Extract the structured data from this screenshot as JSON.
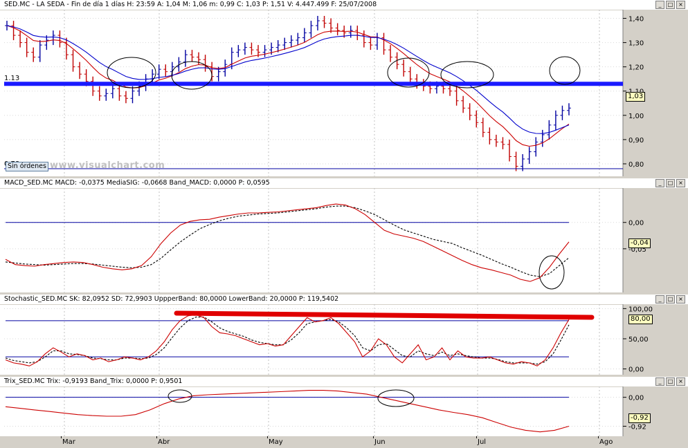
{
  "chart_data": [
    {
      "type": "candlestick",
      "title": "SED.MC - LA SEDA - Fin de día 1 días H: 23:59 A: 1,04 M: 1,06 m: 0,99 C: 1,03 P: 1,51 V: 4.447.499 F: 25/07/2008",
      "yticks": [
        "1,40",
        "1,30",
        "1,20",
        "1,10",
        "1,00",
        "0,90",
        "0,80"
      ],
      "ylim": [
        0.76,
        1.43
      ],
      "xticks": [
        "Mar",
        "Abr",
        "May",
        "Jun",
        "Jul",
        "Ago"
      ],
      "current_value": "1,03",
      "hlines": [
        {
          "value": 1.13,
          "label": "1.13"
        },
        {
          "value": 0.78,
          "label": "0.78"
        }
      ],
      "close": [
        1.37,
        1.33,
        1.3,
        1.26,
        1.24,
        1.29,
        1.31,
        1.33,
        1.3,
        1.25,
        1.2,
        1.17,
        1.14,
        1.1,
        1.08,
        1.09,
        1.11,
        1.08,
        1.07,
        1.1,
        1.12,
        1.15,
        1.17,
        1.19,
        1.18,
        1.2,
        1.22,
        1.25,
        1.24,
        1.23,
        1.2,
        1.16,
        1.18,
        1.21,
        1.26,
        1.27,
        1.28,
        1.27,
        1.26,
        1.27,
        1.28,
        1.29,
        1.3,
        1.31,
        1.32,
        1.34,
        1.37,
        1.39,
        1.38,
        1.36,
        1.35,
        1.34,
        1.35,
        1.33,
        1.3,
        1.29,
        1.32,
        1.27,
        1.24,
        1.21,
        1.18,
        1.15,
        1.13,
        1.12,
        1.11,
        1.12,
        1.11,
        1.1,
        1.06,
        1.03,
        1.0,
        0.97,
        0.93,
        0.9,
        0.89,
        0.88,
        0.83,
        0.79,
        0.82,
        0.85,
        0.89,
        0.92,
        0.96,
        1.0,
        1.02,
        1.03
      ],
      "series": [
        {
          "name": "Media 1",
          "color": "#cc0000"
        },
        {
          "name": "Media 2",
          "color": "#0000cc"
        }
      ]
    },
    {
      "type": "line",
      "title": "MACD_SED.MC MACD: -0,0375 MediaSIG: -0,0668 Band_MACD: 0,0000 P: 0,0595",
      "yticks": [
        "0,00",
        "-0,05"
      ],
      "ylim": [
        -0.125,
        0.06
      ],
      "current_value": "-0,04",
      "macd": [
        -0.07,
        -0.08,
        -0.082,
        -0.083,
        -0.08,
        -0.078,
        -0.076,
        -0.075,
        -0.076,
        -0.08,
        -0.085,
        -0.088,
        -0.09,
        -0.088,
        -0.082,
        -0.065,
        -0.04,
        -0.02,
        -0.005,
        0.002,
        0.005,
        0.006,
        0.01,
        0.013,
        0.016,
        0.018,
        0.018,
        0.019,
        0.02,
        0.022,
        0.024,
        0.026,
        0.028,
        0.032,
        0.035,
        0.033,
        0.026,
        0.015,
        0.0,
        -0.015,
        -0.022,
        -0.026,
        -0.03,
        -0.036,
        -0.045,
        -0.054,
        -0.063,
        -0.072,
        -0.08,
        -0.086,
        -0.09,
        -0.095,
        -0.1,
        -0.108,
        -0.112,
        -0.105,
        -0.085,
        -0.06,
        -0.037
      ],
      "signal": [
        -0.075,
        -0.077,
        -0.079,
        -0.08,
        -0.081,
        -0.08,
        -0.079,
        -0.078,
        -0.078,
        -0.079,
        -0.081,
        -0.083,
        -0.085,
        -0.086,
        -0.085,
        -0.08,
        -0.068,
        -0.052,
        -0.037,
        -0.024,
        -0.012,
        -0.004,
        0.003,
        0.008,
        0.012,
        0.014,
        0.016,
        0.017,
        0.018,
        0.02,
        0.022,
        0.024,
        0.026,
        0.029,
        0.031,
        0.031,
        0.028,
        0.022,
        0.015,
        0.005,
        -0.005,
        -0.014,
        -0.02,
        -0.026,
        -0.032,
        -0.036,
        -0.04,
        -0.048,
        -0.055,
        -0.062,
        -0.07,
        -0.078,
        -0.085,
        -0.093,
        -0.1,
        -0.103,
        -0.097,
        -0.082,
        -0.067
      ]
    },
    {
      "type": "line",
      "title": "Stochastic_SED.MC SK: 82,0952 SD: 72,9903 UppperBand: 80,0000 LowerBand: 20,0000 P: 119,5402",
      "yticks": [
        "100,00",
        "50,00",
        "0,00"
      ],
      "ylim": [
        -5,
        105
      ],
      "current_value": "80,00",
      "bands": [
        80,
        20
      ],
      "sk": [
        15,
        10,
        8,
        5,
        12,
        25,
        35,
        28,
        20,
        25,
        22,
        15,
        18,
        12,
        15,
        20,
        18,
        15,
        20,
        30,
        45,
        65,
        80,
        88,
        90,
        85,
        70,
        60,
        58,
        55,
        50,
        45,
        40,
        42,
        38,
        40,
        55,
        70,
        85,
        78,
        80,
        85,
        75,
        60,
        45,
        20,
        30,
        50,
        40,
        20,
        10,
        25,
        40,
        15,
        20,
        35,
        15,
        30,
        20,
        18,
        18,
        20,
        15,
        10,
        8,
        12,
        10,
        5,
        15,
        35,
        60,
        82
      ],
      "sd": [
        18,
        14,
        12,
        10,
        12,
        20,
        30,
        30,
        25,
        24,
        22,
        18,
        17,
        15,
        15,
        18,
        18,
        17,
        18,
        24,
        35,
        52,
        68,
        80,
        86,
        86,
        78,
        68,
        62,
        58,
        54,
        48,
        44,
        42,
        40,
        40,
        48,
        60,
        75,
        78,
        80,
        82,
        78,
        68,
        55,
        35,
        30,
        40,
        42,
        32,
        22,
        20,
        30,
        25,
        22,
        28,
        22,
        25,
        22,
        20,
        18,
        18,
        16,
        12,
        10,
        10,
        10,
        8,
        12,
        25,
        48,
        73
      ]
    },
    {
      "type": "line",
      "title": "Trix_SED.MC Trix: -0,9193 Band_Trix: 0,0000 P: 0,9501",
      "yticks": [
        "0,00",
        "-0,92"
      ],
      "ylim": [
        -1.15,
        0.3
      ],
      "current_value": "-0,92",
      "trix": [
        -0.3,
        -0.35,
        -0.4,
        -0.45,
        -0.5,
        -0.55,
        -0.58,
        -0.6,
        -0.6,
        -0.55,
        -0.4,
        -0.2,
        -0.05,
        0.05,
        0.08,
        0.1,
        0.12,
        0.14,
        0.16,
        0.18,
        0.2,
        0.22,
        0.22,
        0.2,
        0.15,
        0.1,
        0.0,
        -0.1,
        -0.2,
        -0.3,
        -0.4,
        -0.48,
        -0.55,
        -0.65,
        -0.8,
        -0.95,
        -1.05,
        -1.1,
        -1.05,
        -0.92
      ]
    }
  ],
  "xaxis": {
    "labels": [
      "Mar",
      "Abr",
      "May",
      "Jun",
      "Jul",
      "Ago"
    ]
  },
  "watermark": "www.visualchart.com",
  "orders_label": "Sin órdenes",
  "window_buttons": [
    "_",
    "□",
    "×"
  ]
}
